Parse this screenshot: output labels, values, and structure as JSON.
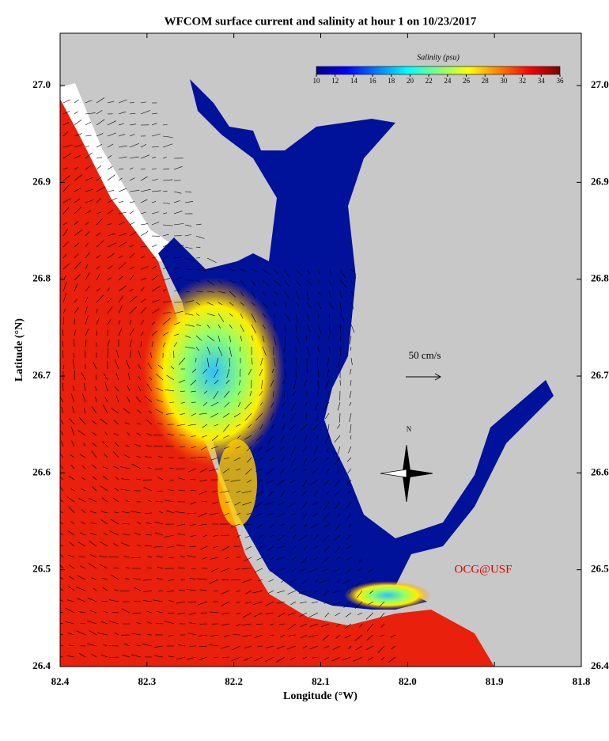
{
  "map": {
    "title": "WFCOM surface current and salinity at hour 1 on 10/23/2017",
    "xlabel": "Longitude (°W)",
    "ylabel": "Latitude (°N)",
    "xlim": [
      82.4,
      81.8
    ],
    "ylim": [
      26.4,
      27.054
    ],
    "xticks": [
      82.4,
      82.3,
      82.2,
      82.1,
      {
        "value": 82,
        "label": "82.0"
      },
      81.9,
      81.8
    ],
    "yticks": [
      26.4,
      26.5,
      26.6,
      26.7,
      26.8,
      26.9,
      {
        "value": 27,
        "label": "27.0"
      }
    ],
    "colorbar": {
      "label": "Salinity (psu)",
      "range": [
        10,
        36
      ],
      "colormap": "jet",
      "ticks": [
        10,
        12,
        14,
        16,
        18,
        20,
        22,
        24,
        26,
        28,
        30,
        32,
        34,
        36
      ]
    },
    "scale_arrow": "50 cm/s",
    "compass": "N",
    "credit": "OCG@USF"
  }
}
